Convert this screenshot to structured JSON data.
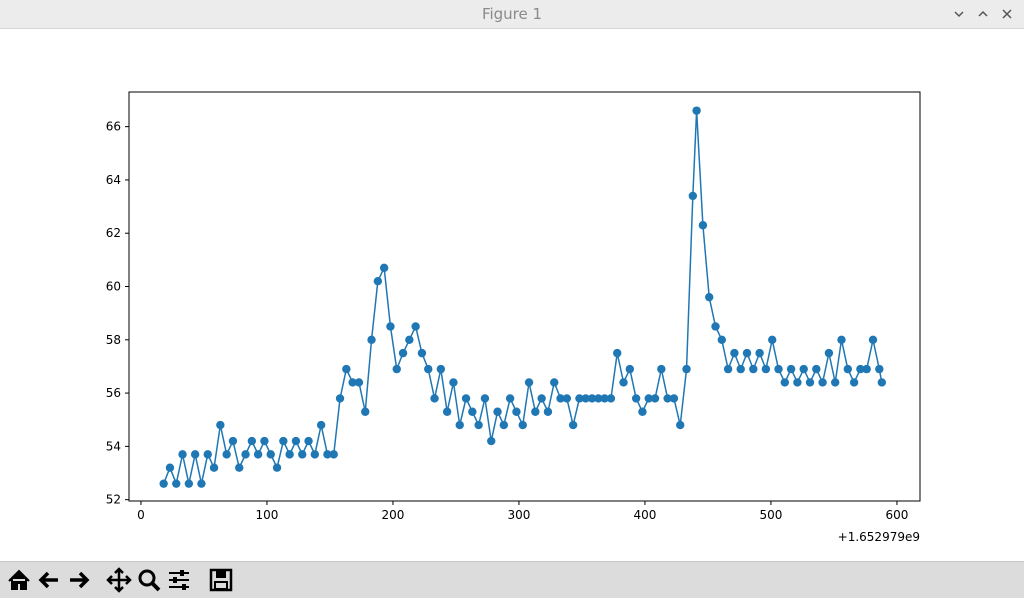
{
  "window": {
    "title": "Figure 1"
  },
  "chart_data": {
    "type": "line",
    "color": "#1f77b4",
    "x_offset_label": "+1.652979e9",
    "x": [
      18,
      23,
      28,
      33,
      38,
      43,
      48,
      53,
      58,
      63,
      68,
      73,
      78,
      83,
      88,
      93,
      98,
      103,
      108,
      113,
      118,
      123,
      128,
      133,
      138,
      143,
      148,
      153,
      158,
      163,
      168,
      173,
      178,
      183,
      188,
      193,
      198,
      203,
      208,
      213,
      218,
      223,
      228,
      233,
      238,
      243,
      248,
      253,
      258,
      263,
      268,
      273,
      278,
      283,
      288,
      293,
      298,
      303,
      308,
      313,
      318,
      323,
      328,
      333,
      338,
      343,
      348,
      353,
      358,
      363,
      368,
      373,
      378,
      383,
      388,
      393,
      398,
      403,
      408,
      413,
      418,
      423,
      428,
      433,
      438,
      441,
      446,
      451,
      456,
      461,
      466,
      471,
      476,
      481,
      486,
      491,
      496,
      501,
      506,
      511,
      516,
      521,
      526,
      531,
      536,
      541,
      546,
      551,
      556,
      561,
      566,
      571,
      576,
      581,
      586,
      588
    ],
    "values": [
      52.6,
      53.2,
      52.6,
      53.7,
      52.6,
      53.7,
      52.6,
      53.7,
      53.2,
      54.8,
      53.7,
      54.2,
      53.2,
      53.7,
      54.2,
      53.7,
      54.2,
      53.7,
      53.2,
      54.2,
      53.7,
      54.2,
      53.7,
      54.2,
      53.7,
      54.8,
      53.7,
      53.7,
      55.8,
      56.9,
      56.4,
      56.4,
      55.3,
      58.0,
      60.2,
      60.7,
      58.5,
      56.9,
      57.5,
      58.0,
      58.5,
      57.5,
      56.9,
      55.8,
      56.9,
      55.3,
      56.4,
      54.8,
      55.8,
      55.3,
      54.8,
      55.8,
      54.2,
      55.3,
      54.8,
      55.8,
      55.3,
      54.8,
      56.4,
      55.3,
      55.8,
      55.3,
      56.4,
      55.8,
      55.8,
      54.8,
      55.8,
      55.8,
      55.8,
      55.8,
      55.8,
      55.8,
      57.5,
      56.4,
      56.9,
      55.8,
      55.3,
      55.8,
      55.8,
      56.9,
      55.8,
      55.8,
      54.8,
      56.9,
      63.4,
      66.6,
      62.3,
      59.6,
      58.5,
      58.0,
      56.9,
      57.5,
      56.9,
      57.5,
      56.9,
      57.5,
      56.9,
      58.0,
      56.9,
      56.4,
      56.9,
      56.4,
      56.9,
      56.4,
      56.9,
      56.4,
      57.5,
      56.4,
      58.0,
      56.9,
      56.4,
      56.9,
      56.9,
      58.0,
      56.9,
      56.4
    ],
    "xlim": [
      -9.5,
      618.3
    ],
    "ylim": [
      51.95,
      67.3
    ],
    "xticks": [
      0,
      100,
      200,
      300,
      400,
      500,
      600
    ],
    "yticks": [
      52,
      54,
      56,
      58,
      60,
      62,
      64,
      66
    ]
  }
}
